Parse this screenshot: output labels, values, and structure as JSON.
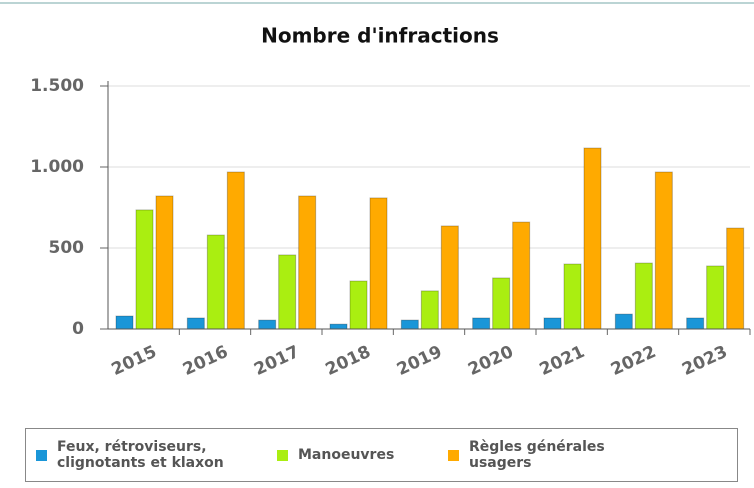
{
  "chart_data": {
    "type": "bar",
    "title": "Nombre d'infractions",
    "categories": [
      "2015",
      "2016",
      "2017",
      "2018",
      "2019",
      "2020",
      "2021",
      "2022",
      "2023"
    ],
    "series": [
      {
        "name": "Feux, rétroviseurs, clignotants et klaxon",
        "color": "#1a96d8",
        "values": [
          80,
          68,
          55,
          30,
          55,
          68,
          68,
          92,
          68
        ]
      },
      {
        "name": "Manoeuvres",
        "color": "#aaee11",
        "values": [
          735,
          580,
          457,
          296,
          235,
          315,
          401,
          407,
          389
        ]
      },
      {
        "name": "Règles générales usagers",
        "color": "#ffaa00",
        "values": [
          821,
          969,
          821,
          809,
          636,
          660,
          1117,
          969,
          623
        ]
      }
    ],
    "ylim": [
      0,
      1500
    ],
    "yticks": [
      0,
      500,
      {
        "value": 1000,
        "label": "1.000"
      },
      {
        "value": 1500,
        "label": "1.500"
      }
    ],
    "grid": true,
    "legend": "bottom"
  }
}
